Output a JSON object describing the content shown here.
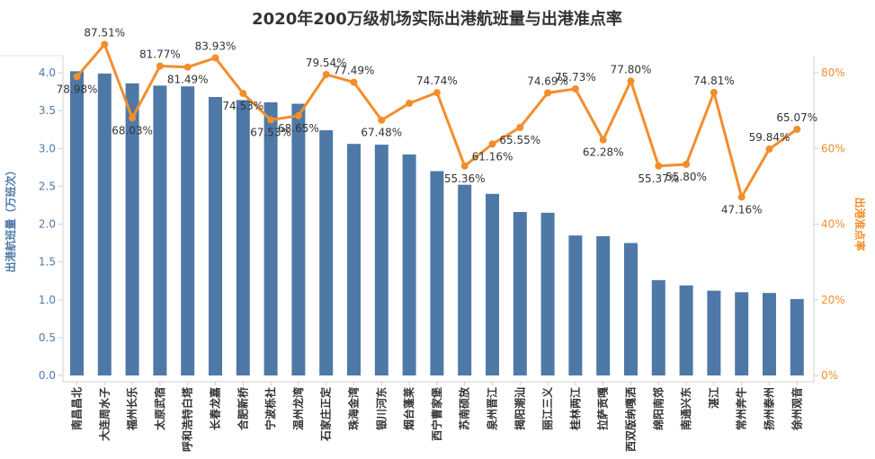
{
  "chart_data": {
    "type": "bar",
    "title": "2020年200万级机场实际出港航班量与出港准点率",
    "ylabel_left": "出港航班量（万班次）",
    "ylabel_right": "出港准点率",
    "ylim_left": [
      0,
      4.0
    ],
    "ylim_right": [
      0,
      0.8
    ],
    "left_ticks": [
      "0.0",
      "0.5",
      "1.0",
      "1.5",
      "2.0",
      "2.5",
      "3.0",
      "3.5",
      "4.0"
    ],
    "right_ticks": [
      "0%",
      "20%",
      "40%",
      "60%",
      "80%"
    ],
    "categories": [
      "南昌昌北",
      "大连周水子",
      "福州长乐",
      "太原武宿",
      "呼和浩特白塔",
      "长春龙嘉",
      "合肥新桥",
      "宁波栎社",
      "温州龙湾",
      "石家庄正定",
      "珠海金湾",
      "银川河东",
      "烟台蓬莱",
      "西宁曹家堡",
      "苏南硕放",
      "泉州晋江",
      "揭阳潮汕",
      "丽江三义",
      "桂林两江",
      "拉萨贡嘎",
      "西双版纳嘎洒",
      "绵阳南郊",
      "南通兴东",
      "湛江",
      "常州奔牛",
      "扬州泰州",
      "徐州观音"
    ],
    "series": [
      {
        "name": "出港航班量",
        "axis": "left",
        "type": "bar",
        "color": "#4e79a7",
        "values": [
          4.02,
          3.99,
          3.86,
          3.83,
          3.82,
          3.68,
          3.64,
          3.61,
          3.59,
          3.24,
          3.06,
          3.05,
          2.92,
          2.7,
          2.52,
          2.4,
          2.16,
          2.15,
          1.85,
          1.84,
          1.75,
          1.26,
          1.19,
          1.12,
          1.1,
          1.09,
          1.01
        ]
      },
      {
        "name": "出港准点率",
        "axis": "right",
        "type": "line",
        "color": "#f28e2b",
        "values": [
          0.7898,
          0.8751,
          0.6803,
          0.8177,
          0.8149,
          0.8393,
          0.7453,
          0.6753,
          0.6865,
          0.7954,
          0.7749,
          0.6748,
          0.7193,
          0.7474,
          0.5536,
          0.6116,
          0.6555,
          0.7469,
          0.7573,
          0.6228,
          0.778,
          0.5537,
          0.558,
          0.7481,
          0.4716,
          0.5984,
          0.6507
        ],
        "labels": [
          "78.98%",
          "87.51%",
          "68.03%",
          "81.77%",
          "81.49%",
          "83.93%",
          "74.53%",
          "67.53%",
          "68.65%",
          "79.54%",
          "77.49%",
          "67.48%",
          "71.93%",
          "74.74%",
          "55.36%",
          "61.16%",
          "65.55%",
          "74.69%",
          "75.73%",
          "62.28%",
          "77.80%",
          "55.37%",
          "55.80%",
          "74.81%",
          "47.16%",
          "59.84%",
          "65.07%"
        ],
        "label_positions": [
          "below",
          "above",
          "below",
          "above",
          "below",
          "above",
          "below",
          "below",
          "below",
          "above",
          "above",
          "below",
          "above",
          "above",
          "below",
          "below",
          "below",
          "above",
          "above",
          "below",
          "above",
          "below",
          "below",
          "above",
          "below",
          "above",
          "above"
        ],
        "shown_labels": [
          0,
          1,
          2,
          3,
          4,
          5,
          6,
          7,
          8,
          9,
          10,
          11,
          13,
          14,
          15,
          16,
          17,
          18,
          19,
          20,
          21,
          22,
          23,
          24,
          25,
          26
        ]
      }
    ],
    "grid": false,
    "legend": "none"
  }
}
